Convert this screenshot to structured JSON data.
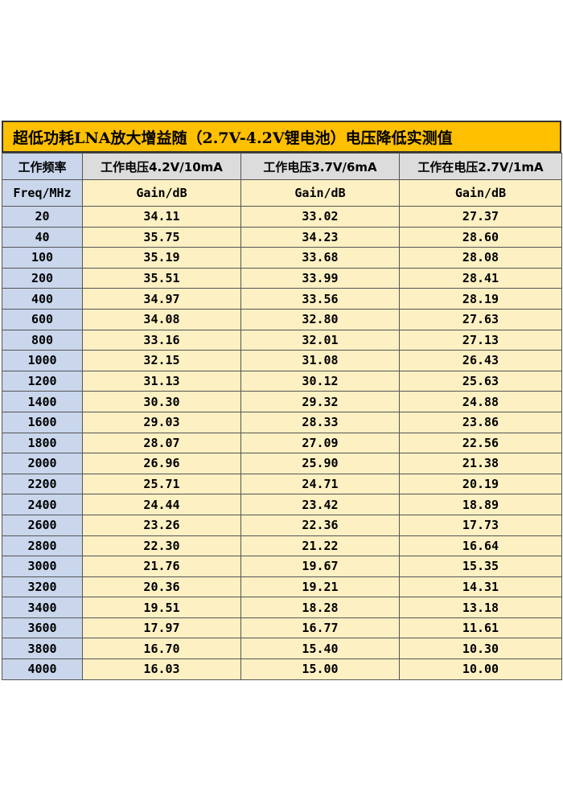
{
  "title": "超低功耗LNA放大增益随（2.7V-4.2V锂电池）电压降低实测值",
  "headers": {
    "col0": "工作频率",
    "col1": "工作电压4.2V/10mA",
    "col2": "工作电压3.7V/6mA",
    "col3": "工作在电压2.7V/1mA"
  },
  "units": {
    "col0": "Freq/MHz",
    "col1": "Gain/dB",
    "col2": "Gain/dB",
    "col3": "Gain/dB"
  },
  "rows": [
    {
      "freq": "20",
      "v42": "34.11",
      "v37": "33.02",
      "v27": "27.37"
    },
    {
      "freq": "40",
      "v42": "35.75",
      "v37": "34.23",
      "v27": "28.60"
    },
    {
      "freq": "100",
      "v42": "35.19",
      "v37": "33.68",
      "v27": "28.08"
    },
    {
      "freq": "200",
      "v42": "35.51",
      "v37": "33.99",
      "v27": "28.41"
    },
    {
      "freq": "400",
      "v42": "34.97",
      "v37": "33.56",
      "v27": "28.19"
    },
    {
      "freq": "600",
      "v42": "34.08",
      "v37": "32.80",
      "v27": "27.63"
    },
    {
      "freq": "800",
      "v42": "33.16",
      "v37": "32.01",
      "v27": "27.13"
    },
    {
      "freq": "1000",
      "v42": "32.15",
      "v37": "31.08",
      "v27": "26.43"
    },
    {
      "freq": "1200",
      "v42": "31.13",
      "v37": "30.12",
      "v27": "25.63"
    },
    {
      "freq": "1400",
      "v42": "30.30",
      "v37": "29.32",
      "v27": "24.88"
    },
    {
      "freq": "1600",
      "v42": "29.03",
      "v37": "28.33",
      "v27": "23.86"
    },
    {
      "freq": "1800",
      "v42": "28.07",
      "v37": "27.09",
      "v27": "22.56"
    },
    {
      "freq": "2000",
      "v42": "26.96",
      "v37": "25.90",
      "v27": "21.38"
    },
    {
      "freq": "2200",
      "v42": "25.71",
      "v37": "24.71",
      "v27": "20.19"
    },
    {
      "freq": "2400",
      "v42": "24.44",
      "v37": "23.42",
      "v27": "18.89"
    },
    {
      "freq": "2600",
      "v42": "23.26",
      "v37": "22.36",
      "v27": "17.73"
    },
    {
      "freq": "2800",
      "v42": "22.30",
      "v37": "21.22",
      "v27": "16.64"
    },
    {
      "freq": "3000",
      "v42": "21.76",
      "v37": "19.67",
      "v27": "15.35"
    },
    {
      "freq": "3200",
      "v42": "20.36",
      "v37": "19.21",
      "v27": "14.31"
    },
    {
      "freq": "3400",
      "v42": "19.51",
      "v37": "18.28",
      "v27": "13.18"
    },
    {
      "freq": "3600",
      "v42": "17.97",
      "v37": "16.77",
      "v27": "11.61"
    },
    {
      "freq": "3800",
      "v42": "16.70",
      "v37": "15.40",
      "v27": "10.30"
    },
    {
      "freq": "4000",
      "v42": "16.03",
      "v37": "15.00",
      "v27": "10.00"
    }
  ],
  "colors": {
    "title_bg": "#ffc000",
    "freq_bg": "#c9d6ec",
    "value_bg": "#fdf0c3",
    "header_bg": "#dcdcdc"
  }
}
